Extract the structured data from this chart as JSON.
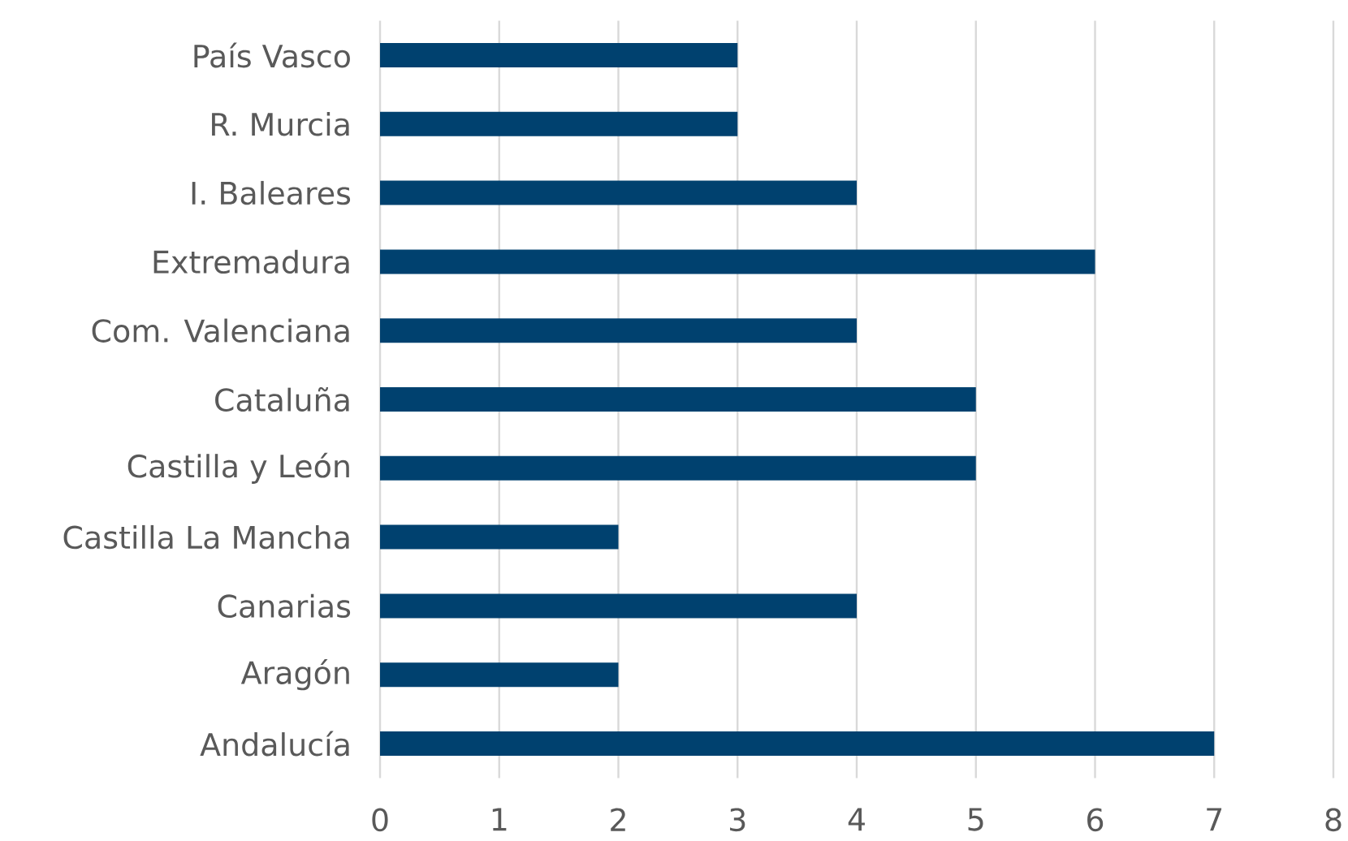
{
  "chart_data": {
    "type": "bar",
    "orientation": "horizontal",
    "categories": [
      "País Vasco",
      "R. Murcia",
      "I. Baleares",
      "Extremadura",
      "Com. Valenciana",
      "Cataluña",
      "Castilla y León",
      "Castilla La Mancha",
      "Canarias",
      "Aragón",
      "Andalucía"
    ],
    "values": [
      3,
      3,
      4,
      6,
      4,
      5,
      5,
      2,
      4,
      2,
      7
    ],
    "color": "#00416f",
    "xlim": [
      0,
      8
    ],
    "xticks": [
      0,
      1,
      2,
      3,
      4,
      5,
      6,
      7,
      8
    ],
    "grid": "x"
  }
}
